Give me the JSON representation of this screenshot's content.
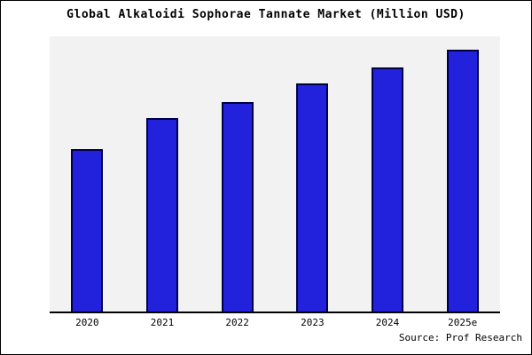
{
  "chart_data": {
    "type": "bar",
    "categories": [
      "2020",
      "2021",
      "2022",
      "2023",
      "2024",
      "2025e"
    ],
    "values": [
      62,
      74,
      80,
      87,
      93,
      100
    ],
    "title": "Global Alkaloidi Sophorae Tannate Market (Million USD)",
    "xlabel": "",
    "ylabel": "",
    "ylim": [
      0,
      105
    ],
    "grid": false,
    "legend_position": "none",
    "colors": {
      "bar_fill": "#2222dd",
      "bar_border": "#000044",
      "plot_background": "#f2f2f2",
      "axis_line": "#000000",
      "frame_border": "#000000",
      "page_background": "#ffffff",
      "text": "#000000"
    }
  },
  "source_note": "Source: Prof Research"
}
